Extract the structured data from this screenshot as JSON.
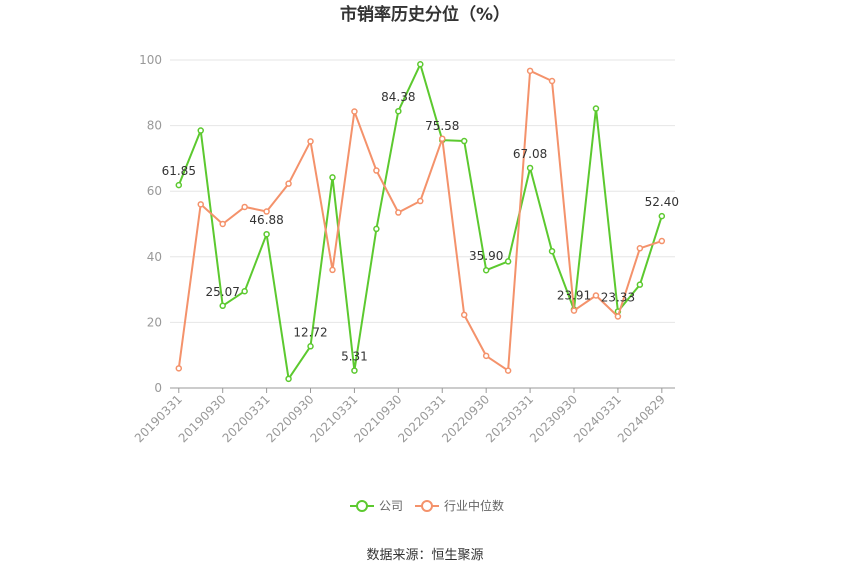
{
  "chart_data": {
    "type": "line",
    "title": "市销率历史分位（%）",
    "x": [
      "20190331",
      "20190630",
      "20190930",
      "20191231",
      "20200331",
      "20200630",
      "20200930",
      "20201231",
      "20210331",
      "20210630",
      "20210930",
      "20211231",
      "20220331",
      "20220630",
      "20220930",
      "20221231",
      "20230331",
      "20230630",
      "20230930",
      "20231231",
      "20240331",
      "20240630",
      "20240829"
    ],
    "x_tick_labels": [
      "20190331",
      "20190930",
      "20200331",
      "20200930",
      "20210331",
      "20210930",
      "20220331",
      "20220930",
      "20230331",
      "20230930",
      "20240331",
      "20240829"
    ],
    "y_ticks": [
      0,
      20,
      40,
      60,
      80,
      100
    ],
    "ylim": [
      0,
      100
    ],
    "grid": true,
    "legend_position": "bottom",
    "series": [
      {
        "name": "公司",
        "color": "#5cc92f",
        "values": [
          61.85,
          78.5,
          25.07,
          29.5,
          46.88,
          2.8,
          12.72,
          64.2,
          5.31,
          48.5,
          84.38,
          98.7,
          75.58,
          75.3,
          35.9,
          38.6,
          67.08,
          41.7,
          23.91,
          85.2,
          23.33,
          31.5,
          52.4
        ],
        "data_labels": {
          "0": "61.85",
          "2": "25.07",
          "4": "46.88",
          "6": "12.72",
          "8": "5.31",
          "10": "84.38",
          "12": "75.58",
          "14": "35.90",
          "16": "67.08",
          "18": "23.91",
          "20": "23.33",
          "22": "52.40"
        }
      },
      {
        "name": "行业中位数",
        "color": "#f4926b",
        "values": [
          6.0,
          56.0,
          50.0,
          55.2,
          53.8,
          62.3,
          75.2,
          36.0,
          84.3,
          66.3,
          53.5,
          57.0,
          76.0,
          22.3,
          9.8,
          5.3,
          96.7,
          93.6,
          23.6,
          28.2,
          21.8,
          42.6,
          44.8
        ],
        "data_labels": {}
      }
    ]
  },
  "footer": {
    "source": "数据来源：恒生聚源"
  }
}
